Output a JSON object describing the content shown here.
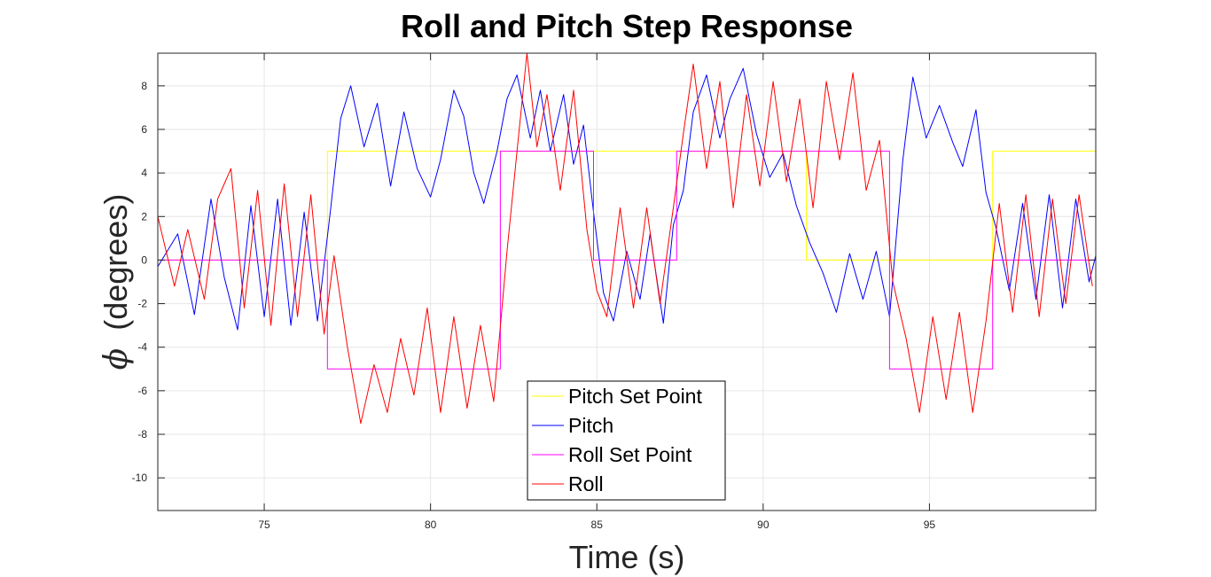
{
  "chart_data": {
    "type": "line",
    "title": "Roll and Pitch Step Response",
    "xlabel": "Time (s)",
    "ylabel_symbol": "ϕ",
    "ylabel_text": "(degrees)",
    "xlim": [
      71.8,
      100
    ],
    "ylim": [
      -11.5,
      9.5
    ],
    "xticks": [
      75,
      80,
      85,
      90,
      95
    ],
    "yticks": [
      -10,
      -8,
      -6,
      -4,
      -2,
      0,
      2,
      4,
      6,
      8
    ],
    "grid": true,
    "legend_position": "bottom-center",
    "series": [
      {
        "name": "Pitch Set Point",
        "color": "#ffff00",
        "x": [
          71.8,
          76.9,
          76.9,
          91.3,
          91.3,
          96.9,
          96.9,
          100
        ],
        "y": [
          0,
          0,
          5,
          5,
          0,
          0,
          5,
          5
        ]
      },
      {
        "name": "Pitch",
        "color": "#0000ff",
        "x": [
          71.8,
          72.4,
          72.9,
          73.4,
          73.8,
          74.2,
          74.6,
          75.0,
          75.4,
          75.8,
          76.2,
          76.6,
          77.0,
          77.3,
          77.6,
          78.0,
          78.4,
          78.8,
          79.2,
          79.6,
          80.0,
          80.3,
          80.7,
          81.0,
          81.3,
          81.6,
          82.0,
          82.3,
          82.6,
          83.0,
          83.3,
          83.6,
          84.0,
          84.3,
          84.6,
          84.9,
          85.2,
          85.5,
          85.9,
          86.3,
          86.6,
          87.0,
          87.3,
          87.6,
          87.9,
          88.3,
          88.7,
          89.0,
          89.4,
          89.8,
          90.2,
          90.6,
          91.0,
          91.4,
          91.8,
          92.2,
          92.6,
          93.0,
          93.4,
          93.8,
          94.2,
          94.5,
          94.9,
          95.3,
          95.7,
          96.0,
          96.4,
          96.7,
          97.0,
          97.4,
          97.8,
          98.2,
          98.6,
          99.0,
          99.4,
          99.8,
          100
        ],
        "y": [
          -0.3,
          1.2,
          -2.5,
          2.8,
          -0.8,
          -3.2,
          2.5,
          -2.6,
          2.8,
          -3.0,
          2.2,
          -2.8,
          2.4,
          6.5,
          8.0,
          5.2,
          7.2,
          3.4,
          6.8,
          4.2,
          2.9,
          4.6,
          7.8,
          6.6,
          4.0,
          2.6,
          5.0,
          7.4,
          8.5,
          5.6,
          7.8,
          5.0,
          7.6,
          4.4,
          6.2,
          2.2,
          -1.5,
          -2.8,
          0.4,
          -1.8,
          1.2,
          -2.9,
          1.6,
          3.2,
          6.8,
          8.5,
          5.6,
          7.4,
          8.8,
          5.8,
          3.8,
          4.9,
          2.5,
          0.8,
          -0.6,
          -2.4,
          0.3,
          -1.8,
          0.4,
          -2.6,
          4.6,
          8.4,
          5.6,
          7.1,
          5.4,
          4.3,
          6.9,
          3.1,
          1.5,
          -1.4,
          2.6,
          -1.8,
          3.0,
          -2.2,
          2.8,
          -1.0,
          0.2
        ]
      },
      {
        "name": "Roll Set Point",
        "color": "#ff00ff",
        "x": [
          71.8,
          76.9,
          76.9,
          82.1,
          82.1,
          84.9,
          84.9,
          87.4,
          87.4,
          93.8,
          93.8,
          96.9,
          96.9,
          100
        ],
        "y": [
          0,
          0,
          -5,
          -5,
          5,
          5,
          0,
          0,
          5,
          5,
          -5,
          -5,
          0,
          0
        ]
      },
      {
        "name": "Roll",
        "color": "#ff0000",
        "x": [
          71.8,
          72.3,
          72.7,
          73.2,
          73.6,
          74.0,
          74.4,
          74.8,
          75.2,
          75.6,
          76.0,
          76.4,
          76.8,
          77.1,
          77.5,
          77.9,
          78.3,
          78.7,
          79.1,
          79.5,
          79.9,
          80.3,
          80.7,
          81.1,
          81.5,
          81.9,
          82.3,
          82.6,
          82.9,
          83.2,
          83.5,
          83.9,
          84.3,
          84.7,
          85.0,
          85.3,
          85.7,
          86.1,
          86.5,
          86.9,
          87.3,
          87.6,
          87.9,
          88.3,
          88.7,
          89.1,
          89.5,
          89.9,
          90.3,
          90.7,
          91.1,
          91.5,
          91.9,
          92.3,
          92.7,
          93.1,
          93.5,
          93.9,
          94.3,
          94.7,
          95.1,
          95.5,
          95.9,
          96.3,
          96.7,
          97.1,
          97.5,
          97.9,
          98.3,
          98.7,
          99.1,
          99.5,
          99.9
        ],
        "y": [
          2.0,
          -1.2,
          1.4,
          -1.8,
          2.8,
          4.2,
          -2.2,
          3.2,
          -3.0,
          3.5,
          -2.6,
          3.0,
          -3.4,
          0.2,
          -4.0,
          -7.5,
          -4.8,
          -7.0,
          -3.6,
          -6.2,
          -2.2,
          -7.0,
          -2.6,
          -6.8,
          -3.0,
          -6.5,
          0.4,
          5.0,
          9.5,
          5.2,
          7.6,
          3.2,
          7.8,
          1.4,
          -1.4,
          -2.6,
          2.4,
          -2.2,
          2.4,
          -2.0,
          2.4,
          5.8,
          9.0,
          4.2,
          8.2,
          2.4,
          7.6,
          3.4,
          8.2,
          3.6,
          7.4,
          2.4,
          8.2,
          4.6,
          8.6,
          3.2,
          5.5,
          -1.0,
          -3.6,
          -7.0,
          -2.6,
          -6.4,
          -2.4,
          -7.0,
          -2.8,
          2.6,
          -2.4,
          3.0,
          -2.6,
          2.8,
          -2.0,
          3.0,
          -1.2
        ]
      }
    ]
  }
}
